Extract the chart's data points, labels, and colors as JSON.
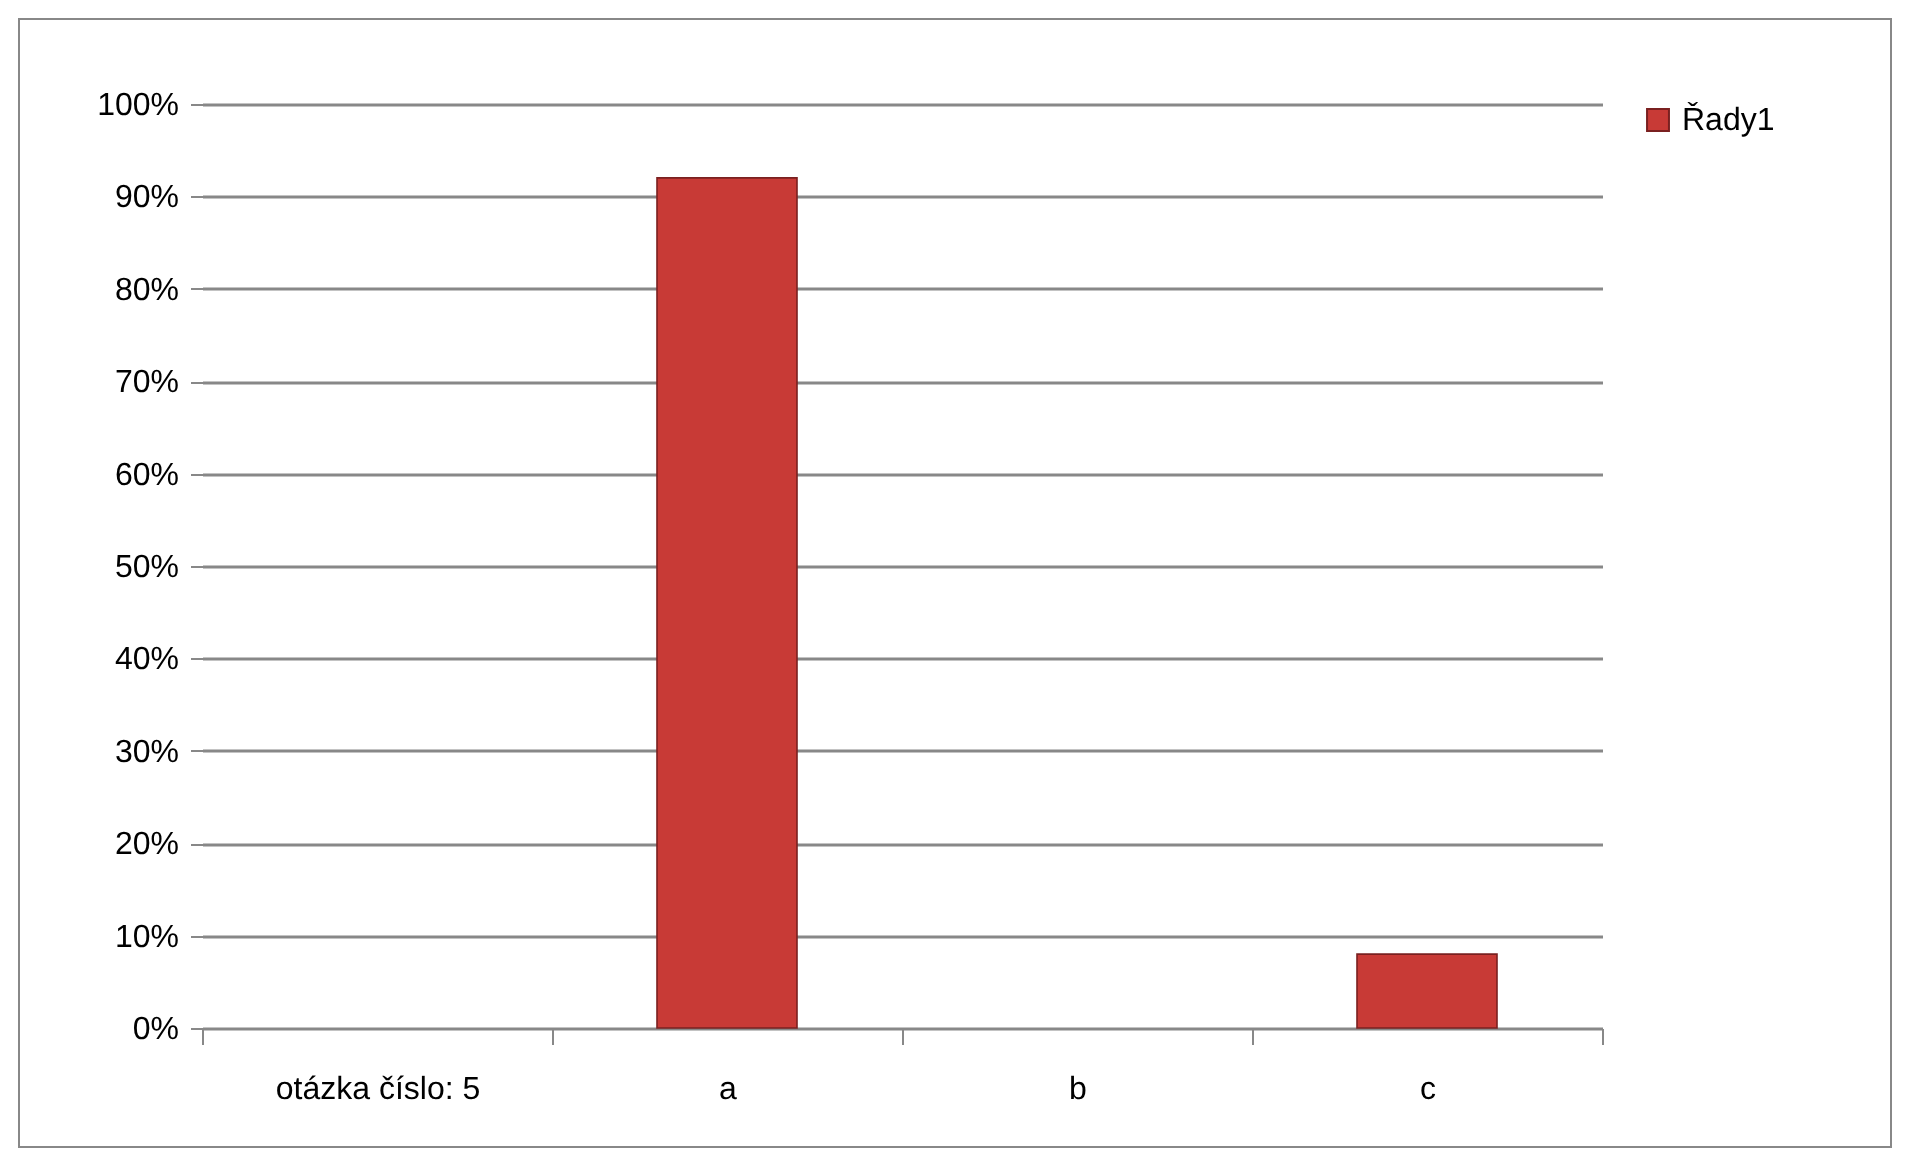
{
  "chart_data": {
    "type": "bar",
    "categories": [
      "otázka číslo: 5",
      "a",
      "b",
      "c"
    ],
    "series": [
      {
        "name": "Řady1",
        "color": "#c83a36",
        "values": [
          null,
          92,
          null,
          8
        ]
      }
    ],
    "ylim": [
      0,
      100
    ],
    "yticks": [
      {
        "value": 0,
        "label": "0%"
      },
      {
        "value": 10,
        "label": "10%"
      },
      {
        "value": 20,
        "label": "20%"
      },
      {
        "value": 30,
        "label": "30%"
      },
      {
        "value": 40,
        "label": "40%"
      },
      {
        "value": 50,
        "label": "50%"
      },
      {
        "value": 60,
        "label": "60%"
      },
      {
        "value": 70,
        "label": "70%"
      },
      {
        "value": 80,
        "label": "80%"
      },
      {
        "value": 90,
        "label": "90%"
      },
      {
        "value": 100,
        "label": "100%"
      }
    ],
    "grid": "y",
    "legend": "right"
  }
}
